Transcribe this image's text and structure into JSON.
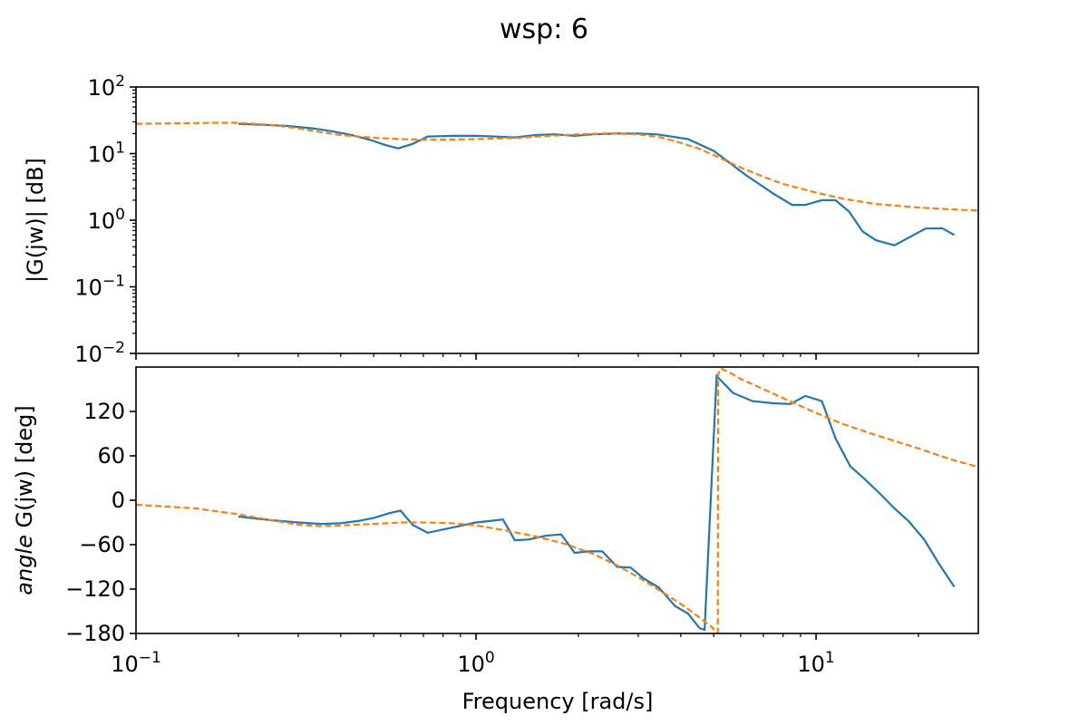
{
  "figure": {
    "title": "wsp: 6",
    "xlabel": "Frequency [rad/s]"
  },
  "chart_data": [
    {
      "type": "line",
      "panel": "magnitude",
      "title": "wsp: 6",
      "xlabel": "",
      "ylabel": "|G(jw)| [dB]",
      "xscale": "log",
      "yscale": "log",
      "xlim": [
        0.1,
        30
      ],
      "ylim": [
        0.01,
        100
      ],
      "xticks": [
        0.1,
        1,
        10
      ],
      "xtick_labels": [
        {
          "base": "10",
          "exp": "−1"
        },
        {
          "base": "10",
          "exp": "0"
        },
        {
          "base": "10",
          "exp": "1"
        }
      ],
      "yticks": [
        100,
        10,
        1,
        0.1,
        0.01
      ],
      "ytick_labels": [
        {
          "base": "10",
          "exp": "2"
        },
        {
          "base": "10",
          "exp": "1"
        },
        {
          "base": "10",
          "exp": "0"
        },
        {
          "base": "10",
          "exp": "−1"
        },
        {
          "base": "10",
          "exp": "−2"
        }
      ],
      "grid": false,
      "series": [
        {
          "color": "#1f77b4",
          "style": "solid",
          "x": [
            0.2,
            0.24,
            0.28,
            0.33,
            0.38,
            0.43,
            0.49,
            0.54,
            0.59,
            0.65,
            0.72,
            0.85,
            1.0,
            1.15,
            1.3,
            1.5,
            1.7,
            1.95,
            2.2,
            2.6,
            3.0,
            3.4,
            4.2,
            5.0,
            6.2,
            7.5,
            8.5,
            9.3,
            10.4,
            11.4,
            12.5,
            13.7,
            15.0,
            17.0,
            21.0,
            23.5,
            25.5
          ],
          "y": [
            28,
            27,
            26,
            24,
            21.5,
            19,
            16,
            13.5,
            12,
            14,
            18,
            18.5,
            18.5,
            18,
            17.5,
            19,
            19.5,
            18.5,
            19.5,
            20,
            20,
            19.5,
            16.5,
            11,
            4.8,
            2.5,
            1.7,
            1.7,
            2.0,
            2.0,
            1.35,
            0.68,
            0.5,
            0.42,
            0.75,
            0.76,
            0.6
          ]
        },
        {
          "color": "#ff7f0e",
          "style": "dashed",
          "x": [
            0.1,
            0.13,
            0.17,
            0.2,
            0.25,
            0.3,
            0.35,
            0.4,
            0.5,
            0.6,
            0.7,
            0.8,
            1.0,
            1.3,
            1.6,
            2.0,
            2.5,
            3.0,
            3.5,
            4.0,
            4.5,
            5.0,
            5.5,
            6.0,
            7.0,
            8.0,
            10.0,
            12.0,
            15.0,
            20.0,
            25.0,
            30.0
          ],
          "y": [
            28,
            28.5,
            29,
            29,
            27,
            24,
            21,
            19,
            17.3,
            16.5,
            16.2,
            16.2,
            16.5,
            17.2,
            18.3,
            19.5,
            20.2,
            19.5,
            17.5,
            14.5,
            12,
            9.5,
            7.6,
            6.2,
            4.5,
            3.5,
            2.6,
            2.1,
            1.75,
            1.55,
            1.45,
            1.4
          ]
        }
      ]
    },
    {
      "type": "line",
      "panel": "phase",
      "title": "",
      "xlabel": "Frequency [rad/s]",
      "ylabel": "angle G(jw) [deg]",
      "ylabel_parts": {
        "italic": "angle",
        "rest": " G(jw) [deg]"
      },
      "xscale": "log",
      "yscale": "linear",
      "xlim": [
        0.1,
        30
      ],
      "ylim": [
        -180,
        180
      ],
      "xticks": [
        0.1,
        1,
        10
      ],
      "yticks": [
        120,
        60,
        0,
        -60,
        -120,
        -180
      ],
      "ytick_labels": [
        "120",
        "60",
        "0",
        "−60",
        "−120",
        "−180"
      ],
      "grid": false,
      "series": [
        {
          "color": "#1f77b4",
          "style": "solid",
          "x": [
            0.2,
            0.25,
            0.3,
            0.35,
            0.4,
            0.45,
            0.5,
            0.55,
            0.6,
            0.65,
            0.72,
            0.85,
            1.0,
            1.1,
            1.2,
            1.3,
            1.43,
            1.6,
            1.78,
            1.95,
            2.15,
            2.35,
            2.6,
            2.85,
            3.1,
            3.45,
            3.85,
            4.2,
            4.55,
            4.7,
            5.1,
            5.7,
            6.5,
            7.5,
            8.4,
            9.3,
            10.4,
            11.4,
            12.6,
            13.8,
            15.4,
            17.0,
            18.7,
            20.8,
            23.0,
            25.5
          ],
          "y": [
            -22,
            -27,
            -30,
            -32,
            -31,
            -28,
            -24,
            -18,
            -14,
            -33,
            -44,
            -37,
            -30,
            -28,
            -26,
            -54,
            -53,
            -48,
            -46,
            -71,
            -69,
            -69,
            -90,
            -91,
            -105,
            -118,
            -143,
            -153,
            -173,
            -175,
            168,
            145,
            134,
            131,
            130,
            141,
            134,
            84,
            46,
            30,
            9,
            -11,
            -28,
            -53,
            -86,
            -117
          ]
        },
        {
          "color": "#ff7f0e",
          "style": "dashed",
          "x": [
            0.1,
            0.15,
            0.2,
            0.25,
            0.3,
            0.35,
            0.4,
            0.5,
            0.6,
            0.7,
            0.85,
            1.0,
            1.2,
            1.5,
            1.8,
            2.2,
            2.6,
            3.0,
            3.5,
            4.0,
            4.5,
            4.9,
            5.1,
            5.14,
            5.15,
            5.25,
            5.6,
            6.0,
            7.0,
            8.0,
            10.0,
            12.0,
            15.0,
            20.0,
            25.0,
            30.0
          ],
          "y": [
            -6,
            -11,
            -19,
            -27,
            -33,
            -35,
            -34,
            -32,
            -30,
            -30,
            -31,
            -34,
            -40,
            -49,
            -58,
            -72,
            -88,
            -104,
            -123,
            -140,
            -157,
            -170,
            -178,
            -179,
            170,
            178,
            172,
            164,
            150,
            138,
            118,
            103,
            88,
            70,
            55,
            45
          ]
        }
      ]
    }
  ]
}
